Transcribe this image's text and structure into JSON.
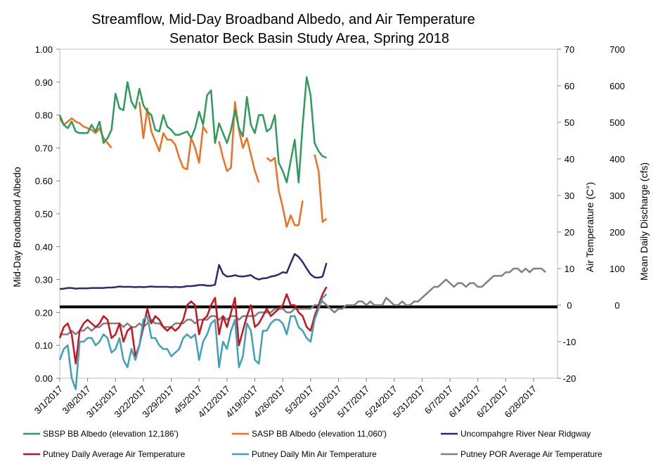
{
  "chart_data": {
    "type": "line",
    "title": "Streamflow, Mid-Day Broadband Albedo, and Air Temperature",
    "subtitle": "Senator Beck Basin Study Area, Spring 2018",
    "y_left": {
      "label": "Mid-Day Broadband Albedo",
      "min": 0,
      "max": 1,
      "ticks": [
        "0.00",
        "0.10",
        "0.20",
        "0.30",
        "0.40",
        "0.50",
        "0.60",
        "0.70",
        "0.80",
        "0.90",
        "1.00"
      ]
    },
    "y_temp": {
      "label": "Air Temperature (C°)",
      "min": -20,
      "max": 70,
      "ticks": [
        "-20",
        "-10",
        "0",
        "10",
        "20",
        "30",
        "40",
        "50",
        "60",
        "70"
      ]
    },
    "y_discharge": {
      "label": "Mean Daily Discharge (cfs)",
      "ticks": [
        "0",
        "100",
        "200",
        "300",
        "400",
        "500",
        "600",
        "700"
      ]
    },
    "x_tick_labels": [
      "3/1/2017",
      "3/8/2017",
      "3/15/2017",
      "3/22/2017",
      "3/29/2017",
      "4/5/2017",
      "4/12/2017",
      "4/19/2017",
      "4/26/2017",
      "5/3/2017",
      "5/10/2017",
      "5/17/2017",
      "5/24/2017",
      "5/31/2017",
      "6/7/2017",
      "6/14/2017",
      "6/21/2017",
      "6/28/2017"
    ],
    "days_total": 125,
    "zero_line_albedo": 0.217,
    "series": [
      {
        "name": "SBSP BB Albedo (elevation 12,186')",
        "color": "#2e9a5c",
        "axis": "albedo",
        "start_day": 0,
        "values": [
          0.8,
          0.77,
          0.76,
          0.78,
          0.75,
          0.745,
          0.745,
          0.745,
          0.77,
          0.75,
          0.78,
          0.715,
          0.73,
          0.755,
          0.865,
          0.82,
          0.815,
          0.9,
          0.84,
          0.82,
          0.88,
          0.83,
          0.81,
          0.8,
          0.755,
          0.75,
          0.8,
          0.765,
          0.755,
          0.74,
          0.74,
          0.745,
          0.75,
          0.73,
          0.76,
          0.81,
          0.77,
          0.86,
          0.875,
          0.715,
          0.775,
          0.745,
          0.715,
          0.755,
          0.815,
          0.76,
          0.735,
          0.855,
          0.77,
          0.745,
          0.8,
          0.8,
          0.75,
          0.76,
          0.8,
          0.655,
          0.63,
          0.595,
          0.66,
          0.725,
          0.595,
          0.77,
          0.915,
          0.86,
          0.715,
          0.69,
          0.675,
          0.67
        ]
      },
      {
        "name": "SASP BB Albedo (elevation 11,060')",
        "color": "#f07020",
        "axis": "albedo",
        "start_day": 0,
        "values": [
          0.79,
          0.77,
          0.78,
          0.79,
          0.78,
          0.775,
          0.765,
          0.76,
          0.755,
          0.745,
          0.76,
          0.73,
          0.715,
          0.7,
          null,
          null,
          null,
          null,
          null,
          null,
          0.84,
          0.73,
          0.82,
          0.75,
          0.72,
          0.69,
          0.745,
          0.725,
          0.725,
          0.71,
          0.67,
          0.64,
          0.635,
          0.73,
          0.7,
          0.655,
          0.765,
          0.745,
          null,
          null,
          0.72,
          0.67,
          0.63,
          0.64,
          0.84,
          0.755,
          0.7,
          0.73,
          0.68,
          0.63,
          0.595,
          null,
          0.67,
          0.66,
          0.67,
          0.57,
          0.52,
          0.46,
          0.495,
          0.465,
          0.465,
          0.54,
          null,
          null,
          0.68,
          0.63,
          0.475,
          0.485
        ]
      },
      {
        "name": "Uncompahgre River Near Ridgway",
        "color": "#2b2a72",
        "axis": "discharge",
        "start_day": 0,
        "values": [
          44,
          45,
          47,
          47,
          45,
          46,
          46,
          46,
          47,
          47,
          47,
          47,
          48,
          48,
          49,
          51,
          50,
          50,
          50,
          49,
          50,
          49,
          50,
          51,
          50,
          50,
          50,
          50,
          49,
          50,
          49,
          50,
          52,
          52,
          53,
          55,
          55,
          53,
          53,
          56,
          110,
          86,
          78,
          79,
          82,
          79,
          78,
          80,
          82,
          74,
          70,
          73,
          74,
          78,
          80,
          84,
          90,
          88,
          115,
          140,
          132,
          118,
          100,
          84,
          76,
          75,
          78,
          115
        ]
      },
      {
        "name": "Putney Daily Average Air Temperature",
        "color": "#c8141e",
        "axis": "temp",
        "start_day": 0,
        "values": [
          -9,
          -6,
          -5,
          -8,
          -16,
          -7,
          -5,
          -4,
          -5,
          -6,
          -5,
          -3,
          -4,
          -9,
          -8,
          -5,
          -10,
          -7,
          -6,
          -14,
          -11,
          -6,
          -1,
          -5,
          -3,
          -4,
          -6,
          -7,
          -6,
          -7,
          -6,
          -4,
          0,
          1,
          0,
          -8,
          -4,
          -3,
          0,
          2,
          -8,
          -3,
          -6,
          -2,
          2,
          -11,
          -7,
          -3,
          0,
          -6,
          -5,
          -3,
          -1,
          -3,
          -2,
          -1,
          0,
          3,
          0,
          0,
          -2,
          -3,
          -6,
          -7,
          -3,
          0,
          3,
          5
        ]
      },
      {
        "name": "Putney Daily Min Air Temperature",
        "color": "#3fa0b8",
        "axis": "temp",
        "start_day": 0,
        "values": [
          -15,
          -12,
          -11,
          -20,
          -23,
          -10,
          -10,
          -9,
          -9,
          -11,
          -10,
          -8,
          -9,
          -13,
          -12,
          -9,
          -15,
          -17,
          -12,
          -15,
          -11,
          -4,
          -3,
          -9,
          -9,
          -11,
          -12,
          -12,
          -14,
          -13,
          -12,
          -9,
          -8,
          -9,
          -8,
          -15,
          -10,
          -8,
          -5,
          -4,
          -17,
          -10,
          -12,
          -7,
          -4,
          -17,
          -14,
          -5,
          -7,
          -15,
          -16,
          -7,
          -7,
          -5,
          -4,
          -4,
          -5,
          -8,
          -3,
          -3,
          -6,
          -7,
          -9,
          -10,
          -4,
          -1,
          2,
          3
        ]
      },
      {
        "name": "Putney POR Average Air Temperature",
        "color": "#808080",
        "axis": "temp",
        "start_day": 0,
        "values": [
          -8,
          -8,
          -8,
          -7,
          -8,
          -7,
          -7,
          -6,
          -7,
          -6,
          -6,
          -5,
          -5,
          -5,
          -5,
          -5,
          -6,
          -5,
          -6,
          -6,
          -5,
          -6,
          -5,
          -4,
          -5,
          -5,
          -6,
          -6,
          -6,
          -5,
          -5,
          -5,
          -4,
          -4,
          -5,
          -4,
          -4,
          -4,
          -3,
          -3,
          -4,
          -3,
          -4,
          -3,
          -3,
          -4,
          -3,
          -3,
          -3,
          -3,
          -2,
          -2,
          -2,
          -2,
          -1,
          -1,
          -1,
          -2,
          -2,
          -1,
          -1,
          -1,
          -1,
          -1,
          0,
          0,
          1,
          0,
          -1,
          -2,
          -1,
          -1,
          0,
          0,
          0,
          1,
          1,
          0,
          1,
          0,
          0,
          0,
          2,
          1,
          0,
          0,
          1,
          0,
          0,
          1,
          1,
          2,
          3,
          4,
          5,
          5,
          6,
          7,
          6,
          5,
          6,
          6,
          5,
          6,
          6,
          5,
          5,
          6,
          7,
          8,
          8,
          8,
          9,
          9,
          10,
          10,
          9,
          10,
          9,
          10,
          10,
          10,
          9
        ]
      }
    ]
  }
}
